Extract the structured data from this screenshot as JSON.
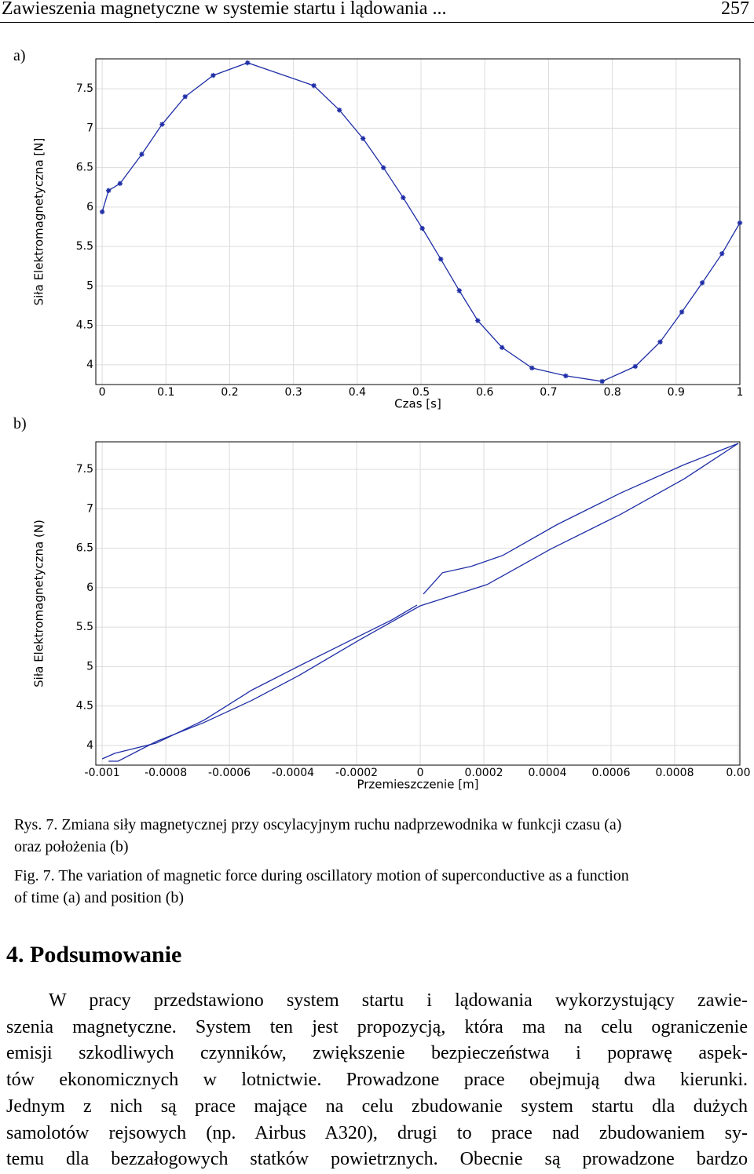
{
  "header": {
    "title": "Zawieszenia magnetyczne w systemie startu i lądowania ...",
    "page_number": "257"
  },
  "chart_data": [
    {
      "type": "line",
      "label": "a)",
      "x_label": "Czas [s]",
      "y_label": "Siła Elektromagnetyczna [N]",
      "xlim": [
        -0.01,
        1.0
      ],
      "ylim": [
        3.75,
        7.88
      ],
      "xticks": [
        0,
        0.1,
        0.2,
        0.3,
        0.4,
        0.5,
        0.6,
        0.7,
        0.8,
        0.9,
        1
      ],
      "yticks": [
        4,
        4.5,
        5,
        5.5,
        6,
        6.5,
        7,
        7.5
      ],
      "grid": true,
      "markers": true,
      "series": [
        {
          "color": "#1f2ea6",
          "x": [
            0,
            0.01,
            0.028,
            0.062,
            0.094,
            0.13,
            0.174,
            0.228,
            0.332,
            0.372,
            0.409,
            0.441,
            0.472,
            0.502,
            0.531,
            0.56,
            0.589,
            0.627,
            0.674,
            0.727,
            0.784,
            0.836,
            0.875,
            0.909,
            0.941,
            0.972,
            1.0
          ],
          "values": [
            5.94,
            6.21,
            6.3,
            6.67,
            7.05,
            7.4,
            7.67,
            7.83,
            7.54,
            7.23,
            6.87,
            6.5,
            6.12,
            5.73,
            5.34,
            4.94,
            4.56,
            4.22,
            3.96,
            3.86,
            3.79,
            3.98,
            4.29,
            4.67,
            5.04,
            5.41,
            5.8
          ]
        }
      ]
    },
    {
      "type": "line",
      "label": "b)",
      "x_label": "Przemieszczenie [m]",
      "y_label": "Siła Elektromagnetyczna (N)",
      "xlim": [
        -0.00102,
        0.001005
      ],
      "ylim": [
        3.75,
        7.85
      ],
      "xticks": [
        -0.001,
        -0.0008,
        -0.0006,
        -0.0004,
        -0.0002,
        0,
        0.0002,
        0.0004,
        0.0006,
        0.0008,
        {
          "value": 0.001,
          "label": "0.00"
        }
      ],
      "yticks": [
        4,
        4.5,
        5,
        5.5,
        6,
        6.5,
        7,
        7.5
      ],
      "grid": true,
      "markers": false,
      "series": [
        {
          "color": "#1f2ea6",
          "x": [
            -0.001,
            -0.00096,
            -0.00083,
            -0.00068,
            -0.00053,
            -0.00038,
            -0.00023,
            -9e-05,
            -1e-05,
            null,
            1e-05,
            7e-05,
            0.00016,
            0.00026,
            0.00043,
            0.00063,
            0.00083,
            0.001
          ],
          "values": [
            3.83,
            3.9,
            4.03,
            4.32,
            4.7,
            5.01,
            5.31,
            5.59,
            5.78,
            null,
            5.92,
            6.19,
            6.27,
            6.41,
            6.8,
            7.2,
            7.56,
            7.83
          ]
        },
        {
          "color": "#1f2ea6",
          "x": [
            0.001,
            0.00083,
            0.00063,
            0.00041,
            0.00021,
            0.0,
            -0.00019,
            -0.00038,
            -0.00053,
            -0.00068,
            -0.00083,
            -0.00095,
            -0.00098
          ],
          "values": [
            7.83,
            7.38,
            6.93,
            6.49,
            6.04,
            5.77,
            5.34,
            4.89,
            4.57,
            4.29,
            4.05,
            3.8,
            3.8
          ]
        }
      ]
    }
  ],
  "caption": {
    "pl": [
      "Rys. 7. Zmiana siły magnetycznej przy oscylacyjnym ruchu nadprzewodnika w funkcji czasu (a)",
      "oraz położenia (b)"
    ],
    "en": [
      "Fig. 7. The variation of magnetic force during oscillatory motion of superconductive as a function",
      "of time (a) and position (b)"
    ]
  },
  "section": {
    "heading": "4. Podsumowanie",
    "lines": [
      "W pracy przedstawiono system startu i lądowania wykorzystujący zawie-",
      "szenia magnetyczne. System ten jest propozycją, która ma na celu ograniczenie",
      "emisji szkodliwych czynników, zwiększenie bezpieczeństwa i poprawę aspek-",
      "tów ekonomicznych w lotnictwie. Prowadzone prace obejmują dwa kierunki.",
      "Jednym z nich są prace mające na celu zbudowanie system startu dla dużych",
      "samolotów rejsowych (np. Airbus A320), drugi to prace nad zbudowaniem sy-",
      "temu dla bezzałogowych statków powietrznych. Obecnie są prowadzone bardzo"
    ]
  }
}
